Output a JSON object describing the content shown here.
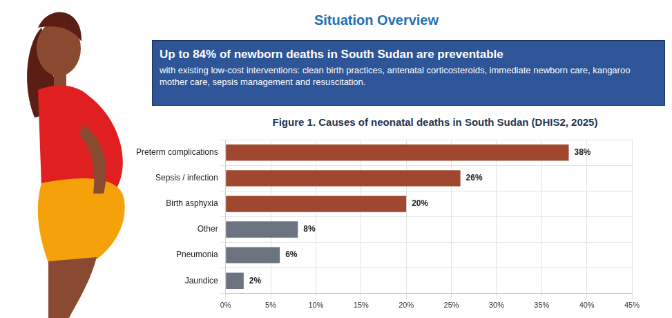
{
  "header": {
    "title": "Situation Overview"
  },
  "callout": {
    "headline": "Up to 84% of newborn deaths in South Sudan are preventable",
    "text": "with existing low-cost interventions: clean birth practices, antenatal corticosteroids, immediate newborn care, kangaroo mother care, sepsis management and resuscitation."
  },
  "chart_data": {
    "type": "bar",
    "orientation": "horizontal",
    "title": "Figure 1. Causes of neonatal deaths in South Sudan (DHIS2, 2025)",
    "categories": [
      "Preterm complications",
      "Sepsis / infection",
      "Birth asphyxia",
      "Other",
      "Pneumonia",
      "Jaundice"
    ],
    "values": [
      38,
      26,
      20,
      8,
      6,
      2
    ],
    "value_labels": [
      "38%",
      "26%",
      "20%",
      "8%",
      "6%",
      "2%"
    ],
    "colors": [
      "#a0472f",
      "#a0472f",
      "#a0472f",
      "#6b7280",
      "#6b7280",
      "#6b7280"
    ],
    "xlim": [
      0,
      45
    ],
    "xticks": [
      {
        "value": 0,
        "label": "0%"
      },
      {
        "value": 5,
        "label": "5%"
      },
      {
        "value": 10,
        "label": "10%"
      },
      {
        "value": 15,
        "label": "15%"
      },
      {
        "value": 20,
        "label": "20%"
      },
      {
        "value": 25,
        "label": "25%"
      },
      {
        "value": 30,
        "label": "30%"
      },
      {
        "value": 35,
        "label": "35%"
      },
      {
        "value": 40,
        "label": "40%"
      },
      {
        "value": 45,
        "label": "45%"
      }
    ],
    "grid": true,
    "data_labels": true
  }
}
